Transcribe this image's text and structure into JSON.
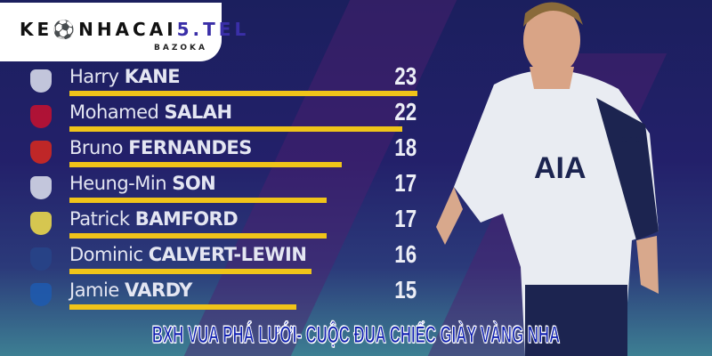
{
  "logo": {
    "text_dark": "KE",
    "text_dark2": "NHACAI",
    "text_accent": "5.TEL",
    "sub": "BAZOKA"
  },
  "colors": {
    "bar": "#f0c419",
    "background": "#1b1f5e",
    "banner_text": "#1020b0"
  },
  "leaderboard": [
    {
      "first": "Harry",
      "last": "KANE",
      "goals": 23,
      "club_icon": "tottenham-crest"
    },
    {
      "first": "Mohamed",
      "last": "SALAH",
      "goals": 22,
      "club_icon": "liverpool-crest"
    },
    {
      "first": "Bruno",
      "last": "FERNANDES",
      "goals": 18,
      "club_icon": "man-utd-crest"
    },
    {
      "first": "Heung-Min",
      "last": "SON",
      "goals": 17,
      "club_icon": "tottenham-crest"
    },
    {
      "first": "Patrick",
      "last": "BAMFORD",
      "goals": 17,
      "club_icon": "leeds-crest"
    },
    {
      "first": "Dominic",
      "last": "CALVERT-LEWIN",
      "goals": 16,
      "club_icon": "everton-crest"
    },
    {
      "first": "Jamie",
      "last": "VARDY",
      "goals": 15,
      "club_icon": "leicester-crest"
    }
  ],
  "player": {
    "sponsor": "AIA",
    "sleeve": "cinch"
  },
  "banner": "BXH VUA PHÁ LƯỚI- CUỘC ĐUA CHIẾC GIÀY VÀNG NHA"
}
